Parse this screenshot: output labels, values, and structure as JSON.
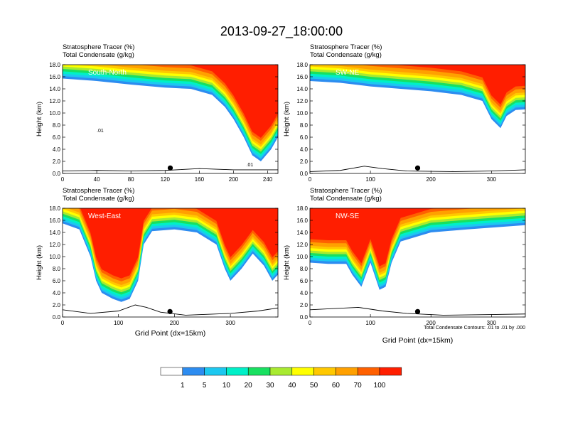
{
  "figure_title": "2013-09-27_18:00:00",
  "colors": {
    "levels": [
      "#ffffff",
      "#2d8cf0",
      "#1cc8f0",
      "#00f0c8",
      "#18e060",
      "#32d228",
      "#a8ea30",
      "#ffff00",
      "#ffc800",
      "#ffa000",
      "#ff6000",
      "#ff1e00"
    ],
    "boundary_line": "#000000",
    "marker": "#000000"
  },
  "chart_data": [
    {
      "type": "contour-cross-section",
      "panel_label": "South-North",
      "title_line1": "Stratosphere Tracer   (%)",
      "title_line2": "Total Condensate   (g/kg)",
      "ylabel": "Height (km)",
      "xlabel": "",
      "xlim": [
        0,
        252
      ],
      "ylim": [
        0,
        18
      ],
      "x_ticks": [
        0,
        40,
        80,
        120,
        160,
        200,
        240
      ],
      "y_ticks": [
        "0.0",
        "2.0",
        "4.0",
        "6.0",
        "8.0",
        "10.0",
        "12.0",
        "14.0",
        "16.0",
        "18.0"
      ],
      "tropopause_km": [
        [
          0,
          15.7
        ],
        [
          40,
          15.3
        ],
        [
          80,
          14.7
        ],
        [
          120,
          14.2
        ],
        [
          150,
          14.0
        ],
        [
          175,
          13.0
        ],
        [
          190,
          11.0
        ],
        [
          200,
          9.0
        ],
        [
          212,
          6.0
        ],
        [
          222,
          3.0
        ],
        [
          232,
          2.0
        ],
        [
          244,
          4.0
        ],
        [
          252,
          6.0
        ]
      ],
      "terrain_km": [
        [
          0,
          0.4
        ],
        [
          40,
          0.5
        ],
        [
          80,
          0.4
        ],
        [
          120,
          0.5
        ],
        [
          160,
          0.8
        ],
        [
          200,
          0.6
        ],
        [
          252,
          0.6
        ]
      ],
      "marker": {
        "x": 126,
        "y": 0.9
      },
      "contour_annotations": [
        {
          "text": ".01",
          "x": 40,
          "y": 6.8
        },
        {
          "text": ".01",
          "x": 215,
          "y": 1.2
        }
      ]
    },
    {
      "type": "contour-cross-section",
      "panel_label": "SW-NE",
      "title_line1": "Stratosphere Tracer   (%)",
      "title_line2": "Total Condensate   (g/kg)",
      "ylabel": "Height (km)",
      "xlabel": "",
      "xlim": [
        0,
        356
      ],
      "ylim": [
        0,
        18
      ],
      "x_ticks": [
        0,
        100,
        200,
        300
      ],
      "y_ticks": [
        "0.0",
        "2.0",
        "4.0",
        "6.0",
        "8.0",
        "10.0",
        "12.0",
        "14.0",
        "16.0",
        "18.0"
      ],
      "tropopause_km": [
        [
          0,
          15.3
        ],
        [
          50,
          15.0
        ],
        [
          100,
          14.4
        ],
        [
          150,
          14.0
        ],
        [
          200,
          13.6
        ],
        [
          250,
          13.0
        ],
        [
          285,
          12.0
        ],
        [
          300,
          9.0
        ],
        [
          315,
          7.5
        ],
        [
          325,
          9.5
        ],
        [
          340,
          10.5
        ],
        [
          356,
          10.6
        ]
      ],
      "terrain_km": [
        [
          0,
          0.3
        ],
        [
          50,
          0.5
        ],
        [
          90,
          1.2
        ],
        [
          120,
          0.8
        ],
        [
          160,
          0.4
        ],
        [
          240,
          0.3
        ],
        [
          300,
          0.4
        ],
        [
          356,
          0.6
        ]
      ],
      "marker": {
        "x": 178,
        "y": 0.9
      },
      "contour_annotations": []
    },
    {
      "type": "contour-cross-section",
      "panel_label": "West-East",
      "title_line1": "Stratosphere Tracer   (%)",
      "title_line2": "Total Condensate   (g/kg)",
      "ylabel": "Height (km)",
      "xlabel": "Grid Point (dx=15km)",
      "xlim": [
        0,
        385
      ],
      "ylim": [
        0,
        18
      ],
      "x_ticks": [
        0,
        100,
        200,
        300
      ],
      "y_ticks": [
        "0.0",
        "2.0",
        "4.0",
        "6.0",
        "8.0",
        "10.0",
        "12.0",
        "14.0",
        "16.0",
        "18.0"
      ],
      "tropopause_km": [
        [
          0,
          15.5
        ],
        [
          30,
          14.5
        ],
        [
          50,
          10.0
        ],
        [
          60,
          6.0
        ],
        [
          70,
          4.0
        ],
        [
          90,
          3.0
        ],
        [
          105,
          2.5
        ],
        [
          120,
          3.0
        ],
        [
          135,
          6.0
        ],
        [
          145,
          12.0
        ],
        [
          160,
          14.2
        ],
        [
          200,
          14.5
        ],
        [
          240,
          14.0
        ],
        [
          275,
          12.0
        ],
        [
          290,
          8.0
        ],
        [
          300,
          6.0
        ],
        [
          320,
          8.0
        ],
        [
          340,
          10.5
        ],
        [
          360,
          8.5
        ],
        [
          375,
          6.0
        ],
        [
          385,
          7.0
        ]
      ],
      "terrain_km": [
        [
          0,
          1.2
        ],
        [
          50,
          0.6
        ],
        [
          100,
          1.0
        ],
        [
          130,
          2.0
        ],
        [
          150,
          1.6
        ],
        [
          175,
          0.8
        ],
        [
          220,
          0.3
        ],
        [
          300,
          0.6
        ],
        [
          350,
          1.0
        ],
        [
          385,
          1.5
        ]
      ],
      "marker": {
        "x": 192,
        "y": 0.9
      },
      "contour_annotations": []
    },
    {
      "type": "contour-cross-section",
      "panel_label": "NW-SE",
      "title_line1": "Stratosphere Tracer   (%)",
      "title_line2": "Total Condensate   (g/kg)",
      "ylabel": "Height (km)",
      "xlabel": "Grid Point (dx=15km)",
      "xlim": [
        0,
        356
      ],
      "ylim": [
        0,
        18
      ],
      "x_ticks": [
        0,
        100,
        200,
        300
      ],
      "y_ticks": [
        "0.0",
        "2.0",
        "4.0",
        "6.0",
        "8.0",
        "10.0",
        "12.0",
        "14.0",
        "16.0",
        "18.0"
      ],
      "tropopause_km": [
        [
          0,
          9.0
        ],
        [
          30,
          8.8
        ],
        [
          60,
          8.8
        ],
        [
          70,
          7.0
        ],
        [
          85,
          5.0
        ],
        [
          100,
          9.0
        ],
        [
          115,
          4.5
        ],
        [
          125,
          5.0
        ],
        [
          135,
          9.0
        ],
        [
          150,
          12.5
        ],
        [
          200,
          14.0
        ],
        [
          260,
          14.5
        ],
        [
          300,
          14.8
        ],
        [
          356,
          15.2
        ]
      ],
      "terrain_km": [
        [
          0,
          1.2
        ],
        [
          40,
          1.4
        ],
        [
          80,
          1.6
        ],
        [
          120,
          1.0
        ],
        [
          160,
          0.6
        ],
        [
          220,
          0.3
        ],
        [
          300,
          0.4
        ],
        [
          356,
          0.5
        ]
      ],
      "marker": {
        "x": 178,
        "y": 0.9
      },
      "contour_annotations": []
    }
  ],
  "footnote": "Total Condensate Contours: .01 to .01 by .000",
  "colorbar": {
    "labels": [
      "1",
      "5",
      "10",
      "20",
      "30",
      "40",
      "50",
      "60",
      "70",
      "100"
    ]
  }
}
